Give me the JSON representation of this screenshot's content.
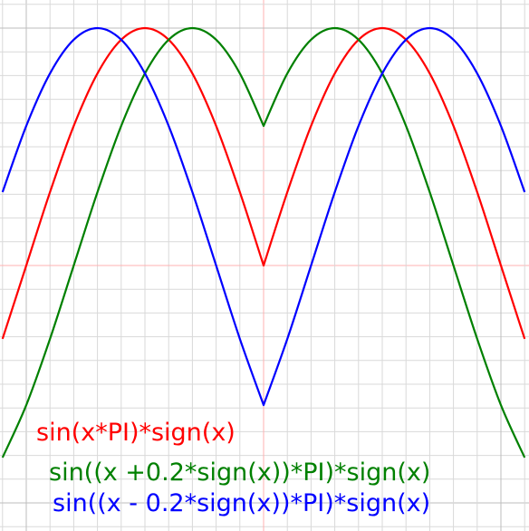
{
  "chart_data": {
    "type": "line",
    "title": "",
    "xlabel": "",
    "ylabel": "",
    "xlim": [
      -1.1,
      1.1
    ],
    "ylim": [
      -1.1,
      1.1
    ],
    "grid": true,
    "grid_minor_step": 0.1,
    "grid_major_step": 1.0,
    "background": "#ffffff",
    "grid_color": "#d9d9d9",
    "grid_major_color": "#bdbdbd",
    "axis_color": "#ffb0b0",
    "legend_position": "bottom",
    "series": [
      {
        "name": "sin(x*PI)*sign(x)",
        "color": "#ff0000",
        "x": [
          -1.1,
          -1.0,
          -0.9,
          -0.8,
          -0.7,
          -0.6,
          -0.5,
          -0.4,
          -0.3,
          -0.2,
          -0.1,
          0.0,
          0.1,
          0.2,
          0.3,
          0.4,
          0.5,
          0.6,
          0.7,
          0.8,
          0.9,
          1.0,
          1.1
        ],
        "y": [
          -0.309,
          0.0,
          0.309,
          0.588,
          0.809,
          0.951,
          1.0,
          0.951,
          0.809,
          0.588,
          0.309,
          0.0,
          0.309,
          0.588,
          0.809,
          0.951,
          1.0,
          0.951,
          0.809,
          0.588,
          0.309,
          0.0,
          -0.309
        ]
      },
      {
        "name": "sin((x +0.2*sign(x))*PI)*sign(x)",
        "color": "#008000",
        "x": [
          -1.1,
          -1.0,
          -0.9,
          -0.8,
          -0.7,
          -0.6,
          -0.5,
          -0.4,
          -0.3,
          -0.2,
          -0.1,
          0.0,
          0.1,
          0.2,
          0.3,
          0.4,
          0.5,
          0.6,
          0.7,
          0.8,
          0.9,
          1.0,
          1.1
        ],
        "y": [
          -0.809,
          -0.588,
          -0.309,
          0.0,
          0.309,
          0.588,
          0.809,
          0.951,
          1.0,
          0.951,
          0.809,
          0.588,
          0.809,
          0.951,
          1.0,
          0.951,
          0.809,
          0.588,
          0.309,
          0.0,
          -0.309,
          -0.588,
          -0.809
        ]
      },
      {
        "name": "sin((x - 0.2*sign(x))*PI)*sign(x)",
        "color": "#0000ff",
        "x": [
          -1.1,
          -1.0,
          -0.9,
          -0.8,
          -0.7,
          -0.6,
          -0.5,
          -0.4,
          -0.3,
          -0.2,
          -0.1,
          0.0,
          0.1,
          0.2,
          0.3,
          0.4,
          0.5,
          0.6,
          0.7,
          0.8,
          0.9,
          1.0,
          1.1
        ],
        "y": [
          0.309,
          0.588,
          0.809,
          0.951,
          1.0,
          0.951,
          0.809,
          0.588,
          0.309,
          0.0,
          -0.309,
          -0.588,
          -0.309,
          0.0,
          0.309,
          0.588,
          0.809,
          0.951,
          1.0,
          0.951,
          0.809,
          0.588,
          0.309
        ]
      }
    ]
  }
}
